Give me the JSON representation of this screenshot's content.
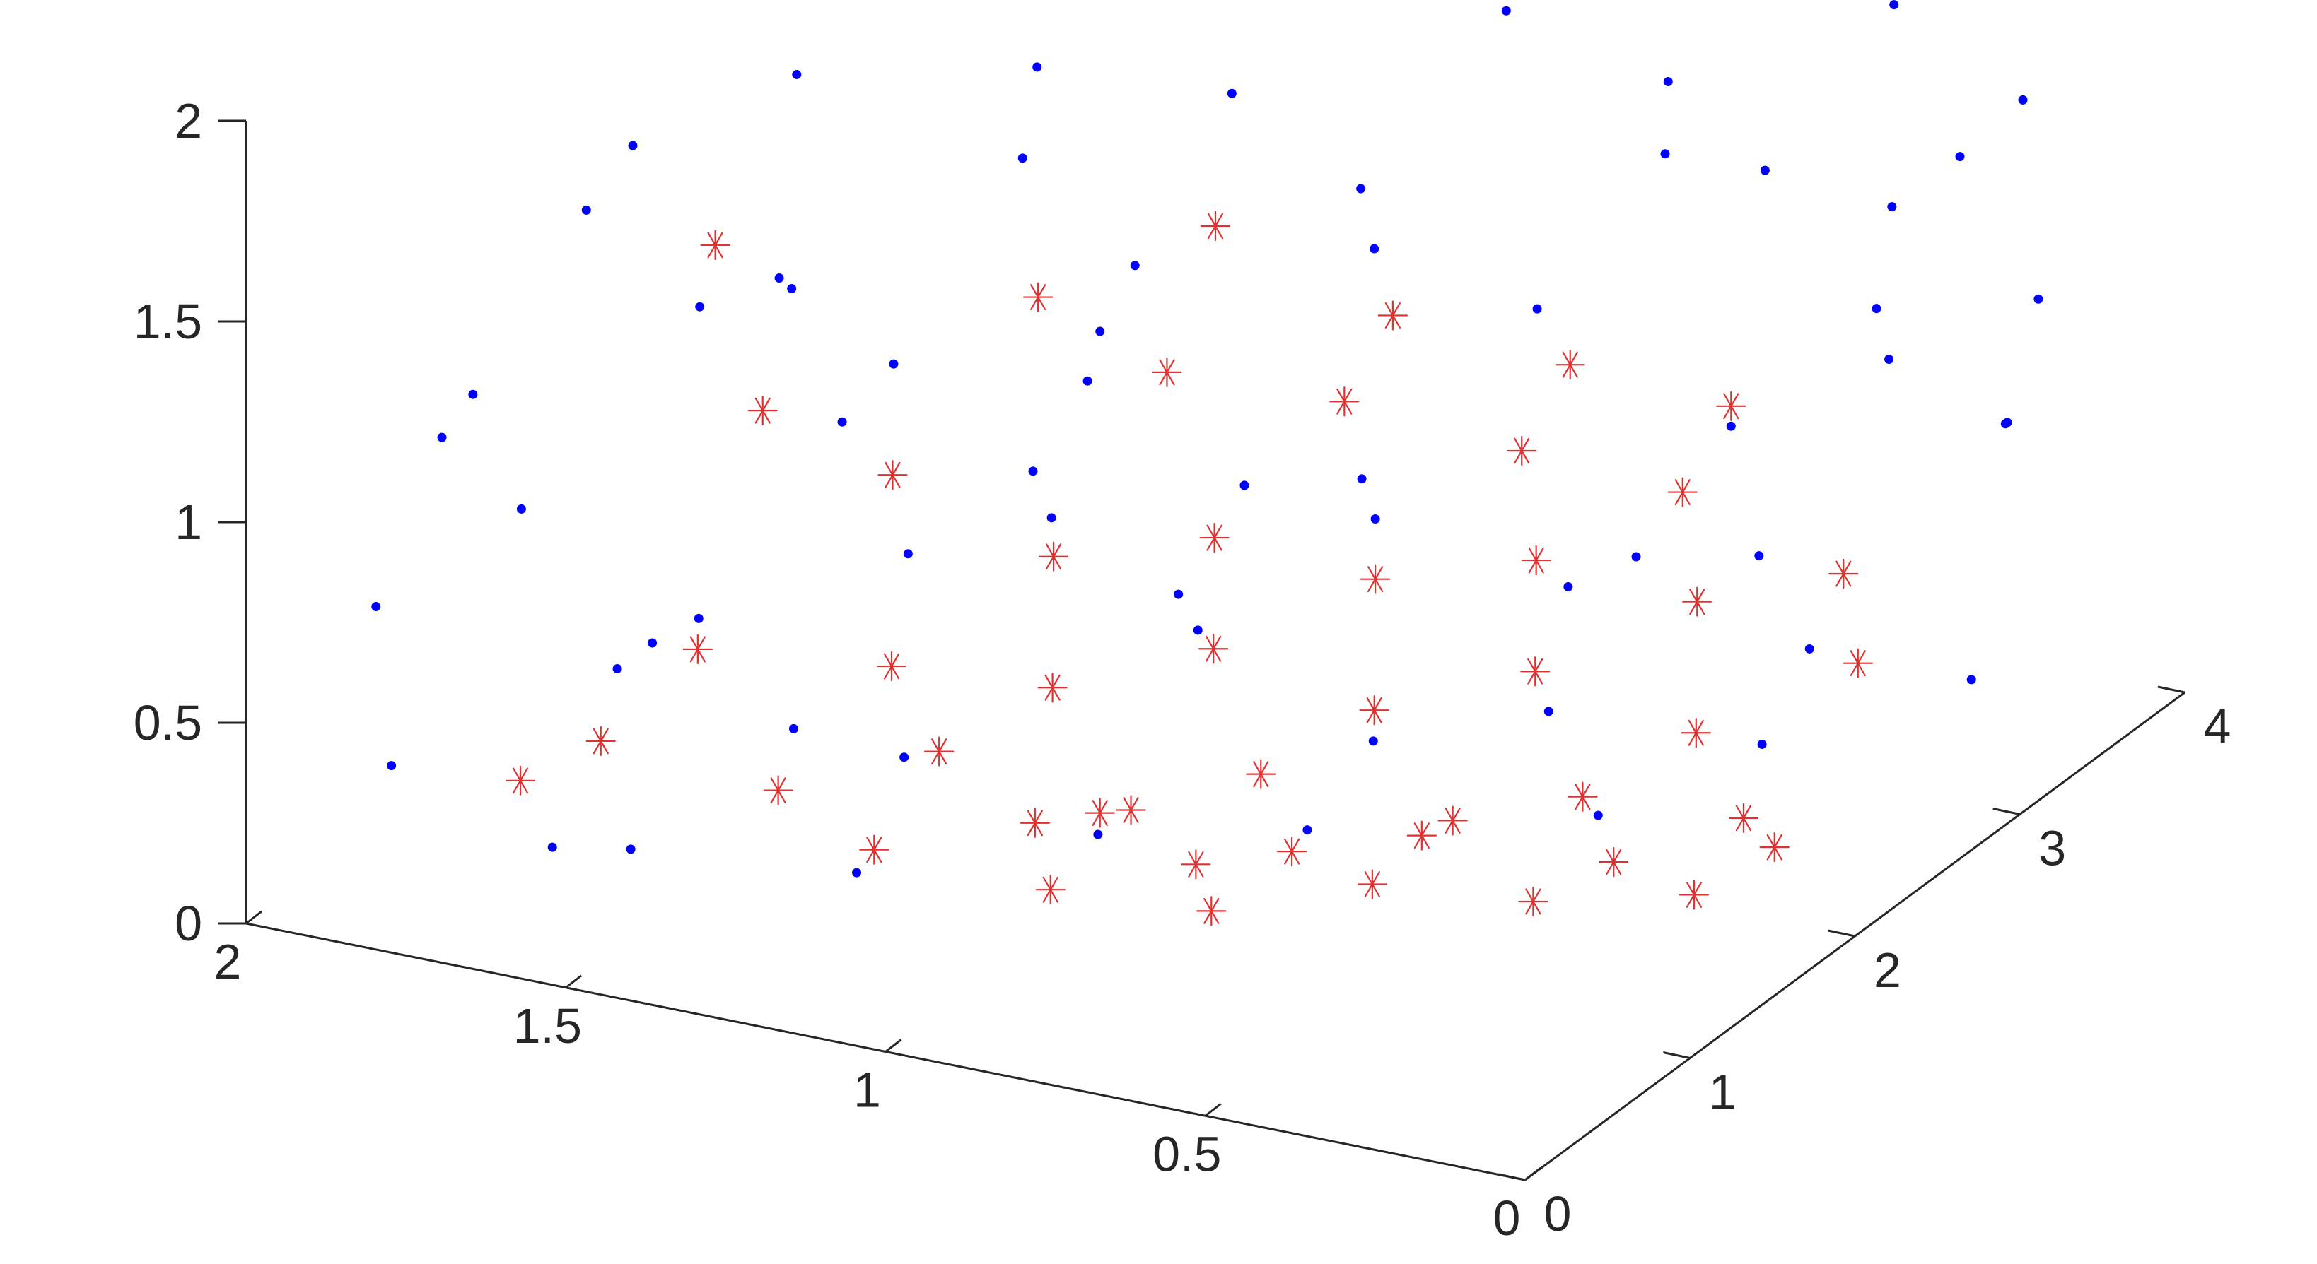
{
  "chart_data": {
    "type": "scatter",
    "projection": "3d",
    "title": "",
    "xlabel": "",
    "ylabel": "",
    "zlabel": "",
    "xlim": [
      0,
      2
    ],
    "ylim": [
      0,
      4
    ],
    "zlim": [
      0,
      2
    ],
    "grid": false,
    "legend": "none",
    "x_ticks": [
      {
        "value": 0,
        "label": "0"
      },
      {
        "value": 0.5,
        "label": "0.5"
      },
      {
        "value": 1,
        "label": "1"
      },
      {
        "value": 1.5,
        "label": "1.5"
      },
      {
        "value": 2,
        "label": "2"
      }
    ],
    "y_ticks": [
      {
        "value": 0,
        "label": "0"
      },
      {
        "value": 1,
        "label": "1"
      },
      {
        "value": 2,
        "label": "2"
      },
      {
        "value": 3,
        "label": "3"
      },
      {
        "value": 4,
        "label": "4"
      }
    ],
    "z_ticks": [
      {
        "value": 0,
        "label": "0"
      },
      {
        "value": 0.5,
        "label": "0.5"
      },
      {
        "value": 1,
        "label": "1"
      },
      {
        "value": 1.5,
        "label": "1.5"
      },
      {
        "value": 2,
        "label": "2"
      }
    ],
    "series": [
      {
        "marker": "dot",
        "color": "#0000ff",
        "points": [
          [
            1.8,
            0.6,
            1.2
          ],
          [
            1.7,
            0.9,
            1.6
          ],
          [
            1.9,
            0.4,
            0.7
          ],
          [
            1.6,
            1.2,
            1.3
          ],
          [
            1.85,
            0.3,
            0.35
          ],
          [
            1.75,
            0.7,
            0.9
          ],
          [
            1.65,
            0.5,
            0.15
          ],
          [
            1.55,
            1.0,
            0.6
          ],
          [
            1.5,
            1.4,
            1.85
          ],
          [
            1.45,
            1.1,
            1.45
          ],
          [
            1.4,
            1.6,
            1.1
          ],
          [
            1.35,
            0.8,
            0.45
          ],
          [
            1.3,
            1.3,
            0.75
          ],
          [
            1.25,
            1.8,
            1.6
          ],
          [
            1.2,
            0.6,
            0.2
          ],
          [
            1.15,
            1.5,
            1.95
          ],
          [
            1.1,
            1.9,
            1.35
          ],
          [
            1.05,
            1.2,
            0.95
          ],
          [
            1.0,
            2.1,
            1.75
          ],
          [
            0.95,
            1.7,
            0.55
          ],
          [
            0.9,
            0.9,
            0.3
          ],
          [
            0.85,
            2.3,
            1.5
          ],
          [
            0.8,
            1.4,
            1.05
          ],
          [
            0.75,
            2.0,
            0.8
          ],
          [
            0.7,
            2.6,
            1.9
          ],
          [
            0.65,
            1.6,
            0.4
          ],
          [
            0.6,
            2.4,
            1.25
          ],
          [
            0.55,
            3.0,
            1.65
          ],
          [
            0.5,
            2.2,
            0.65
          ],
          [
            0.45,
            3.2,
            1.4
          ],
          [
            0.4,
            2.8,
            0.9
          ],
          [
            0.35,
            1.8,
            0.25
          ],
          [
            0.3,
            3.4,
            1.8
          ],
          [
            0.25,
            3.1,
            1.15
          ],
          [
            0.2,
            2.5,
            0.5
          ],
          [
            0.15,
            3.6,
            1.55
          ],
          [
            0.1,
            3.3,
            0.85
          ],
          [
            0.05,
            2.9,
            0.35
          ],
          [
            0.3,
            3.8,
            1.3
          ],
          [
            0.2,
            3.7,
            0.7
          ],
          [
            1.6,
            0.7,
            0.55
          ],
          [
            1.3,
            0.9,
            1.2
          ],
          [
            1.0,
            1.3,
            1.4
          ],
          [
            0.7,
            1.8,
            1.55
          ],
          [
            0.4,
            2.4,
            1.7
          ],
          [
            0.2,
            3.0,
            1.45
          ],
          [
            0.1,
            3.5,
            1.1
          ],
          [
            0.5,
            3.5,
            1.9
          ],
          [
            1.9,
            0.8,
            1.0
          ],
          [
            1.7,
            1.3,
            0.4
          ],
          [
            1.2,
            2.0,
            1.0
          ],
          [
            0.9,
            2.5,
            0.7
          ],
          [
            0.6,
            3.0,
            0.45
          ],
          [
            0.3,
            2.6,
            0.2
          ],
          [
            1.1,
            0.5,
            0.55
          ],
          [
            0.8,
            1.0,
            0.9
          ],
          [
            1.45,
            0.2,
            0.3
          ],
          [
            1.25,
            0.4,
            1.7
          ],
          [
            1.55,
            0.6,
            1.9
          ],
          [
            0.95,
            0.7,
            1.25
          ],
          [
            0.65,
            1.2,
            0.3
          ],
          [
            0.35,
            1.5,
            0.6
          ],
          [
            0.15,
            2.0,
            0.9
          ],
          [
            0.05,
            2.4,
            1.3
          ]
        ]
      },
      {
        "marker": "asterisk",
        "color": "#e03030",
        "points": [
          [
            1.4,
            0.9,
            0.25
          ],
          [
            1.2,
            1.1,
            0.35
          ],
          [
            1.0,
            1.3,
            0.2
          ],
          [
            0.8,
            1.5,
            0.3
          ],
          [
            0.6,
            1.7,
            0.15
          ],
          [
            0.4,
            1.9,
            0.25
          ],
          [
            0.2,
            2.1,
            0.2
          ],
          [
            1.3,
            1.2,
            0.5
          ],
          [
            1.1,
            1.4,
            0.45
          ],
          [
            0.9,
            1.6,
            0.55
          ],
          [
            0.7,
            1.8,
            0.4
          ],
          [
            0.5,
            2.0,
            0.5
          ],
          [
            0.3,
            2.2,
            0.35
          ],
          [
            1.0,
            1.0,
            0.1
          ],
          [
            0.8,
            1.2,
            0.05
          ],
          [
            0.6,
            1.4,
            0.12
          ],
          [
            0.4,
            1.6,
            0.08
          ],
          [
            0.2,
            1.8,
            0.1
          ],
          [
            1.15,
            1.6,
            0.7
          ],
          [
            0.95,
            1.8,
            0.75
          ],
          [
            0.75,
            2.0,
            0.65
          ],
          [
            0.55,
            2.2,
            0.7
          ],
          [
            0.35,
            2.4,
            0.6
          ],
          [
            0.15,
            2.6,
            0.45
          ],
          [
            1.5,
            0.8,
            0.6
          ],
          [
            1.6,
            0.6,
            0.4
          ],
          [
            1.7,
            0.5,
            0.3
          ],
          [
            1.35,
            1.4,
            0.9
          ],
          [
            1.05,
            1.9,
            1.1
          ],
          [
            0.85,
            2.2,
            1.0
          ],
          [
            0.65,
            2.5,
            0.85
          ],
          [
            0.45,
            2.7,
            0.75
          ],
          [
            0.9,
            1.1,
            0.3
          ],
          [
            0.7,
            1.3,
            0.2
          ],
          [
            0.5,
            1.5,
            0.28
          ],
          [
            0.3,
            1.7,
            0.18
          ],
          [
            0.1,
            1.9,
            0.22
          ],
          [
            1.25,
            0.9,
            0.15
          ],
          [
            1.05,
            1.1,
            0.22
          ],
          [
            0.85,
            1.3,
            0.12
          ],
          [
            1.2,
            1.7,
            1.3
          ],
          [
            1.0,
            2.0,
            1.45
          ],
          [
            0.8,
            2.3,
            1.2
          ],
          [
            0.6,
            2.6,
            1.05
          ],
          [
            0.4,
            2.8,
            0.95
          ],
          [
            0.25,
            2.9,
            0.55
          ],
          [
            1.45,
            1.0,
            1.15
          ],
          [
            1.55,
            1.1,
            1.5
          ]
        ]
      }
    ]
  }
}
